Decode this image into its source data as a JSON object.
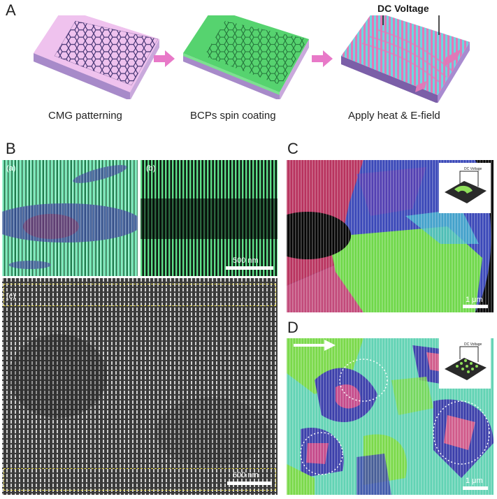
{
  "panels": {
    "A": {
      "letter": "A",
      "steps": [
        "CMG patterning",
        "BCPs spin coating",
        "Apply heat & E-field"
      ],
      "voltage_label": "DC Voltage"
    },
    "B": {
      "letter": "B",
      "sub_a": "(a)",
      "sub_b": "(b)",
      "sub_c": "(c)",
      "scale_b": "500 nm",
      "scale_c": "600 nm"
    },
    "C": {
      "letter": "C",
      "scale": "1 μm",
      "inset_label": "DC Voltage"
    },
    "D": {
      "letter": "D",
      "scale": "1 μm",
      "inset_label": "DC Voltage"
    }
  },
  "colors": {
    "graphene": "#4a3a7a",
    "substrate_pink": "#f2b6e0",
    "coated_green": "#4dd06a",
    "arrow": "#e879c8",
    "stripe_pink": "#e07ab8",
    "stripe_cyan": "#6fd6e0",
    "scale_guide": "#e6d84a"
  },
  "icons": [
    "right-arrow-icon",
    "right-arrow-icon",
    "white-arrow-icon"
  ]
}
